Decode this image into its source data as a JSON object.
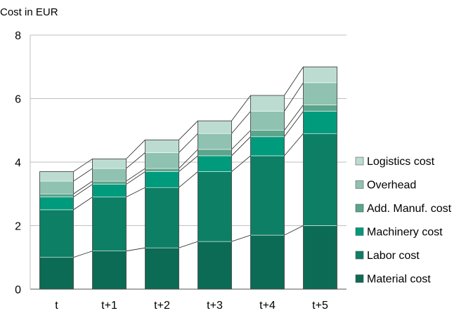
{
  "chart_data": {
    "type": "bar",
    "stacked": true,
    "title": "",
    "ylabel": "Cost in EUR",
    "xlabel": "",
    "ylim": [
      0,
      8
    ],
    "yticks": [
      0,
      2,
      4,
      6,
      8
    ],
    "grid": true,
    "legend_position": "right",
    "connector_lines": true,
    "categories": [
      "t",
      "t+1",
      "t+2",
      "t+3",
      "t+4",
      "t+5"
    ],
    "series": [
      {
        "name": "Material cost",
        "color": "#0b6b55",
        "values": [
          1.0,
          1.2,
          1.3,
          1.5,
          1.7,
          2.0
        ]
      },
      {
        "name": "Labor cost",
        "color": "#0d7f64",
        "values": [
          1.5,
          1.7,
          1.9,
          2.2,
          2.5,
          2.9
        ]
      },
      {
        "name": "Machinery cost",
        "color": "#009a7c",
        "values": [
          0.4,
          0.4,
          0.5,
          0.5,
          0.6,
          0.7
        ]
      },
      {
        "name": "Add. Manuf. cost",
        "color": "#5aa58c",
        "values": [
          0.1,
          0.1,
          0.1,
          0.2,
          0.2,
          0.2
        ]
      },
      {
        "name": "Overhead",
        "color": "#8fc2b0",
        "values": [
          0.4,
          0.4,
          0.5,
          0.5,
          0.6,
          0.7
        ]
      },
      {
        "name": "Logistics cost",
        "color": "#bcdcd1",
        "values": [
          0.3,
          0.3,
          0.4,
          0.4,
          0.5,
          0.5
        ]
      }
    ]
  }
}
